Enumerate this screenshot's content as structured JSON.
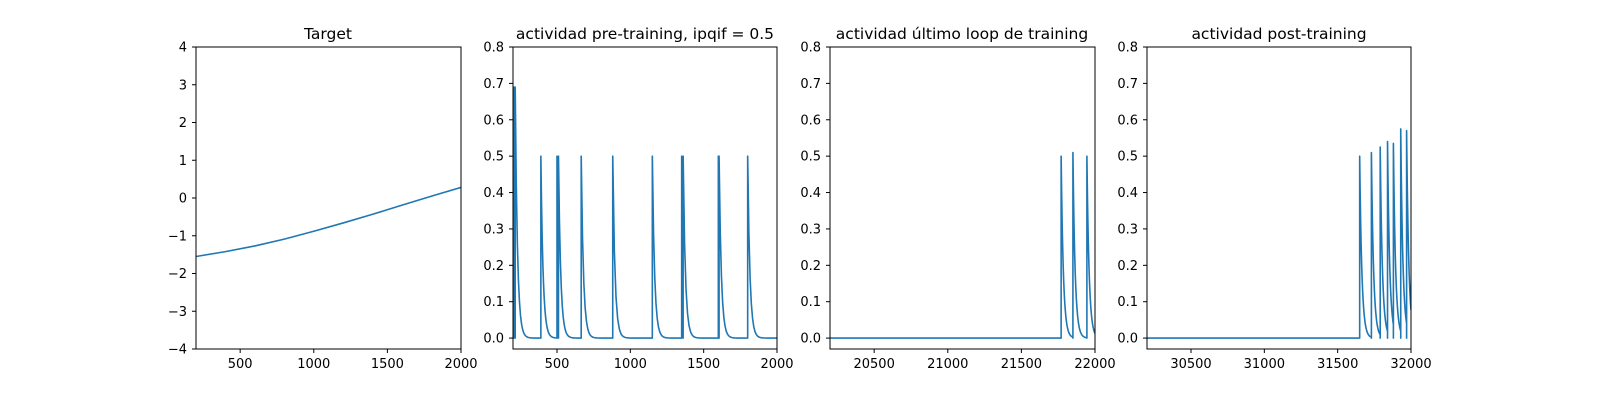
{
  "chart_data": [
    {
      "type": "line",
      "title": "Target",
      "xlim": [
        200,
        2000
      ],
      "ylim": [
        -4,
        4
      ],
      "xticks": [
        500,
        1000,
        1500,
        2000
      ],
      "yticks": [
        -4,
        -3,
        -2,
        -1,
        0,
        1,
        2,
        3,
        4
      ],
      "xticklabels": [
        "500",
        "1000",
        "1500",
        "2000"
      ],
      "yticklabels": [
        "−4",
        "−3",
        "−2",
        "−1",
        "0",
        "1",
        "2",
        "3",
        "4"
      ],
      "color": "#1f77b4",
      "series": [
        {
          "kind": "points",
          "x": [
            200,
            400,
            600,
            800,
            1000,
            1200,
            1400,
            1600,
            1800,
            2000
          ],
          "y": [
            -1.55,
            -1.42,
            -1.27,
            -1.09,
            -0.88,
            -0.66,
            -0.43,
            -0.19,
            0.05,
            0.28
          ]
        }
      ]
    },
    {
      "type": "line",
      "title": "actividad pre-training, ipqif = 0.5",
      "xlim": [
        200,
        2000
      ],
      "ylim": [
        -0.03,
        0.8
      ],
      "xticks": [
        500,
        1000,
        1500,
        2000
      ],
      "yticks": [
        0.0,
        0.1,
        0.2,
        0.3,
        0.4,
        0.5,
        0.6,
        0.7,
        0.8
      ],
      "xticklabels": [
        "500",
        "1000",
        "1500",
        "2000"
      ],
      "yticklabels": [
        "0.0",
        "0.1",
        "0.2",
        "0.3",
        "0.4",
        "0.5",
        "0.6",
        "0.7",
        "0.8"
      ],
      "color": "#1f77b4",
      "series": [
        {
          "kind": "spikes",
          "baseline": 0.0,
          "start": {
            "x": 200,
            "y": 0.2
          },
          "end_x": 2000,
          "spikes": [
            {
              "x": 205,
              "peak": 0.69
            },
            {
              "x": 215,
              "peak": 0.69
            },
            {
              "x": 390,
              "peak": 0.5
            },
            {
              "x": 500,
              "peak": 0.5
            },
            {
              "x": 510,
              "peak": 0.5
            },
            {
              "x": 665,
              "peak": 0.5
            },
            {
              "x": 880,
              "peak": 0.5
            },
            {
              "x": 1150,
              "peak": 0.5
            },
            {
              "x": 1350,
              "peak": 0.5
            },
            {
              "x": 1360,
              "peak": 0.5
            },
            {
              "x": 1600,
              "peak": 0.5
            },
            {
              "x": 1605,
              "peak": 0.5
            },
            {
              "x": 1800,
              "peak": 0.5
            }
          ],
          "decay": 15
        }
      ]
    },
    {
      "type": "line",
      "title": "actividad último loop de training",
      "xlim": [
        20200,
        22000
      ],
      "ylim": [
        -0.03,
        0.8
      ],
      "xticks": [
        20500,
        21000,
        21500,
        22000
      ],
      "yticks": [
        0.0,
        0.1,
        0.2,
        0.3,
        0.4,
        0.5,
        0.6,
        0.7,
        0.8
      ],
      "xticklabels": [
        "20500",
        "21000",
        "21500",
        "22000"
      ],
      "yticklabels": [
        "0.0",
        "0.1",
        "0.2",
        "0.3",
        "0.4",
        "0.5",
        "0.6",
        "0.7",
        "0.8"
      ],
      "color": "#1f77b4",
      "series": [
        {
          "kind": "spikes",
          "baseline": 0.0,
          "start": {
            "x": 20200,
            "y": 0.0
          },
          "end_x": 22000,
          "spikes": [
            {
              "x": 21770,
              "peak": 0.5
            },
            {
              "x": 21850,
              "peak": 0.51
            },
            {
              "x": 21945,
              "peak": 0.5
            }
          ],
          "decay": 15
        }
      ]
    },
    {
      "type": "line",
      "title": "actividad post-training",
      "xlim": [
        30200,
        32000
      ],
      "ylim": [
        -0.03,
        0.8
      ],
      "xticks": [
        30500,
        31000,
        31500,
        32000
      ],
      "yticks": [
        0.0,
        0.1,
        0.2,
        0.3,
        0.4,
        0.5,
        0.6,
        0.7,
        0.8
      ],
      "xticklabels": [
        "30500",
        "31000",
        "31500",
        "32000"
      ],
      "yticklabels": [
        "0.0",
        "0.1",
        "0.2",
        "0.3",
        "0.4",
        "0.5",
        "0.6",
        "0.7",
        "0.8"
      ],
      "color": "#1f77b4",
      "series": [
        {
          "kind": "spikes",
          "baseline": 0.0,
          "start": {
            "x": 30200,
            "y": 0.0
          },
          "end_x": 32000,
          "spikes": [
            {
              "x": 31650,
              "peak": 0.5
            },
            {
              "x": 31730,
              "peak": 0.51
            },
            {
              "x": 31790,
              "peak": 0.525
            },
            {
              "x": 31840,
              "peak": 0.54
            },
            {
              "x": 31880,
              "peak": 0.535
            },
            {
              "x": 31930,
              "peak": 0.575
            },
            {
              "x": 31970,
              "peak": 0.57
            }
          ],
          "decay": 15
        }
      ]
    }
  ]
}
